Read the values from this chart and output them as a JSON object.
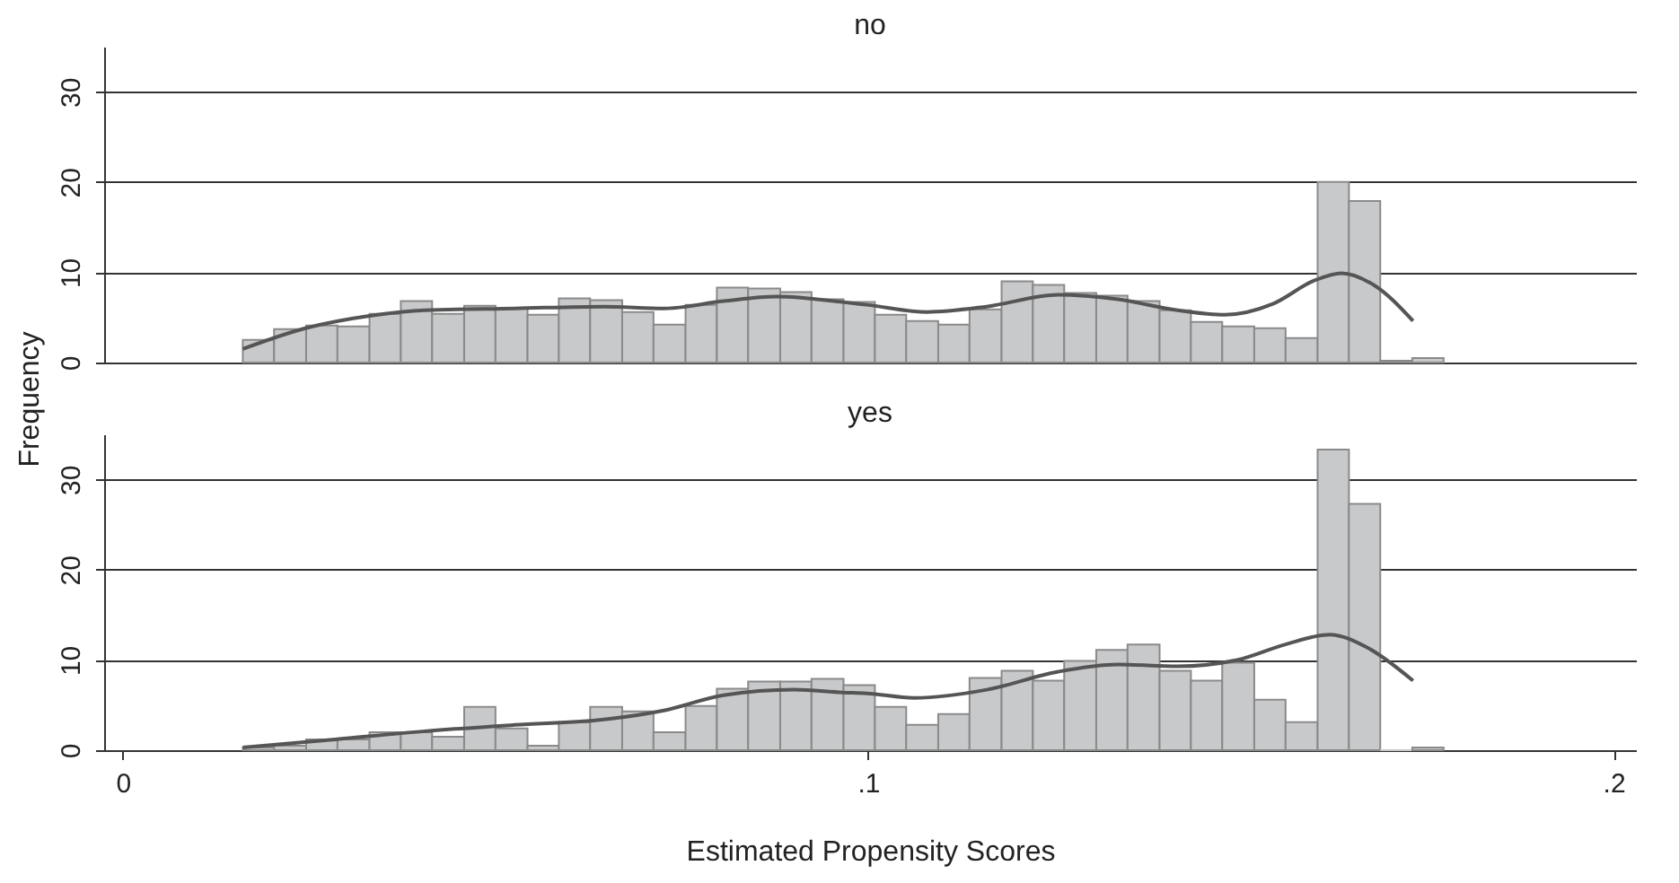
{
  "chart_data": [
    {
      "type": "histogram",
      "title": "no",
      "ylabel": "Frequency",
      "xlim": [
        -0.0025,
        0.203
      ],
      "ylim": [
        0,
        35
      ],
      "yticks": [
        0,
        10,
        20,
        30
      ],
      "grid": "y",
      "tick_labels": "y",
      "bins": [
        0.0161,
        0.0203,
        0.0246,
        0.0288,
        0.0331,
        0.0373,
        0.0415,
        0.0458,
        0.05,
        0.0543,
        0.0585,
        0.0627,
        0.067,
        0.0712,
        0.0755,
        0.0797,
        0.0839,
        0.0882,
        0.0924,
        0.0967,
        0.1009,
        0.1051,
        0.1094,
        0.1136,
        0.1179,
        0.1221,
        0.1263,
        0.1306,
        0.1348,
        0.1391,
        0.1433,
        0.1475,
        0.1518,
        0.156,
        0.1603,
        0.1645,
        0.1687,
        0.173,
        0.1772
      ],
      "series": [
        {
          "color": "#c8c9cb",
          "values": [
            2.5,
            3.7,
            4.1,
            4.0,
            5.4,
            6.8,
            5.4,
            6.3,
            6.0,
            5.3,
            7.1,
            6.9,
            5.6,
            4.2,
            6.4,
            8.3,
            8.2,
            7.8,
            7.0,
            6.7,
            5.3,
            4.6,
            4.2,
            5.9,
            9.0,
            8.6,
            7.7,
            7.4,
            6.8,
            5.8,
            4.5,
            4.0,
            3.8,
            2.7,
            20,
            17.9,
            0.2,
            0.5
          ]
        },
        {
          "type": "line",
          "color": "#555555",
          "x": [
            0.0161,
            0.0245,
            0.0333,
            0.0405,
            0.0526,
            0.0646,
            0.0726,
            0.0806,
            0.0877,
            0.0966,
            0.0998,
            0.1079,
            0.1159,
            0.1255,
            0.1335,
            0.1415,
            0.1479,
            0.1543,
            0.1599,
            0.1635,
            0.168,
            0.1731
          ],
          "values": [
            1.5,
            3.8,
            5.2,
            5.8,
            6.0,
            6.2,
            6.0,
            6.8,
            7.3,
            6.7,
            6.4,
            5.6,
            6.2,
            7.5,
            7.0,
            5.8,
            5.3,
            6.5,
            9.1,
            9.9,
            8.5,
            4.6
          ]
        }
      ]
    },
    {
      "type": "histogram",
      "title": "yes",
      "xlabel": "Estimated Propensity Scores",
      "xlim": [
        -0.0025,
        0.203
      ],
      "xticks": [
        0,
        {
          "value": 0.1,
          "label": ".1"
        },
        {
          "value": 0.2,
          "label": ".2"
        }
      ],
      "ylim": [
        0,
        35
      ],
      "yticks": [
        0,
        10,
        20,
        30
      ],
      "grid": "y",
      "bins": [
        0.0161,
        0.0203,
        0.0246,
        0.0288,
        0.0331,
        0.0373,
        0.0415,
        0.0458,
        0.05,
        0.0543,
        0.0585,
        0.0627,
        0.067,
        0.0712,
        0.0755,
        0.0797,
        0.0839,
        0.0882,
        0.0924,
        0.0967,
        0.1009,
        0.1051,
        0.1094,
        0.1136,
        0.1179,
        0.1221,
        0.1263,
        0.1306,
        0.1348,
        0.1391,
        0.1433,
        0.1475,
        0.1518,
        0.156,
        0.1603,
        0.1645,
        0.1687,
        0.173,
        0.1772
      ],
      "series": [
        {
          "color": "#c8c9cb",
          "values": [
            0.3,
            0.5,
            1.2,
            1.2,
            2.0,
            2.0,
            1.5,
            4.8,
            2.4,
            0.5,
            3.1,
            4.8,
            4.3,
            2.0,
            4.9,
            6.8,
            7.6,
            7.6,
            7.9,
            7.2,
            4.8,
            2.8,
            4.0,
            8.0,
            8.8,
            7.7,
            9.9,
            11.1,
            11.7,
            8.8,
            7.7,
            9.7,
            5.6,
            3.1,
            33.3,
            27.3,
            0,
            0.3
          ]
        },
        {
          "type": "line",
          "color": "#555555",
          "x": [
            0.0161,
            0.0285,
            0.0405,
            0.0526,
            0.0646,
            0.0726,
            0.0806,
            0.0901,
            0.0966,
            0.0998,
            0.1062,
            0.1159,
            0.1255,
            0.1335,
            0.1415,
            0.1495,
            0.1559,
            0.1619,
            0.1671,
            0.1731
          ],
          "values": [
            0.3,
            1.2,
            2.1,
            2.8,
            3.4,
            4.4,
            6.1,
            6.7,
            6.4,
            6.3,
            5.8,
            6.7,
            8.7,
            9.5,
            9.3,
            10.0,
            11.7,
            12.8,
            11.3,
            7.7
          ]
        }
      ]
    }
  ]
}
